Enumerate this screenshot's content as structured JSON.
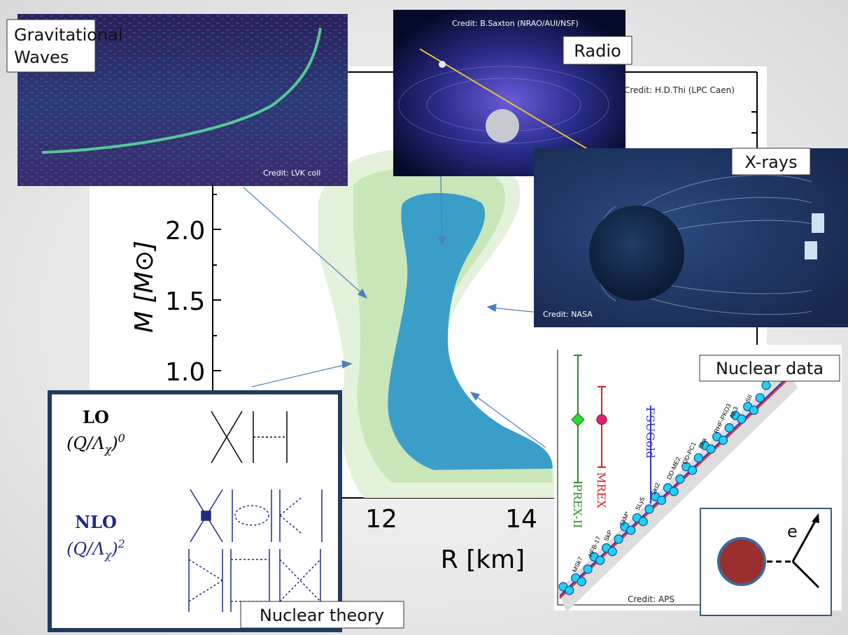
{
  "gravitational_waves": {
    "label": [
      "Gravitational",
      "Waves"
    ],
    "credit": "Credit: LVK coll"
  },
  "radio": {
    "label": "Radio",
    "credit": "Credit: B.Saxton (NRAO/AUI/NSF)"
  },
  "mass_radius": {
    "credit": "Credit: H.D.Thi (LPC Caen)",
    "y_label": "M [M⊙]",
    "x_label": "R [km]",
    "y_ticks": [
      "2.0",
      "1.5",
      "1.0"
    ],
    "x_ticks": [
      "12",
      "14"
    ]
  },
  "xrays": {
    "label": "X-rays",
    "credit": "Credit: NASA"
  },
  "nuclear_data": {
    "label": "Nuclear data",
    "credit": "Credit: APS",
    "experiments": [
      "PREX-II",
      "MREX"
    ],
    "reference_model": "FSUGold",
    "model_labels": [
      "MSk7",
      "HFB-17",
      "SkP",
      "SkM*",
      "SLy5",
      "SkI2",
      "DD-ME2",
      "DD-PC1",
      "Ska",
      "RHF-PKO3",
      "NL3",
      "SII"
    ],
    "inset_label": "e"
  },
  "nuclear_theory": {
    "label": "Nuclear theory",
    "orders": [
      {
        "name": "LO",
        "open": "(Q/Λ",
        "subscript": "χ",
        "close": ")",
        "exponent": "0"
      },
      {
        "name": "NLO",
        "open": "(Q/Λ",
        "subscript": "χ",
        "close": ")",
        "exponent": "2"
      }
    ]
  }
}
